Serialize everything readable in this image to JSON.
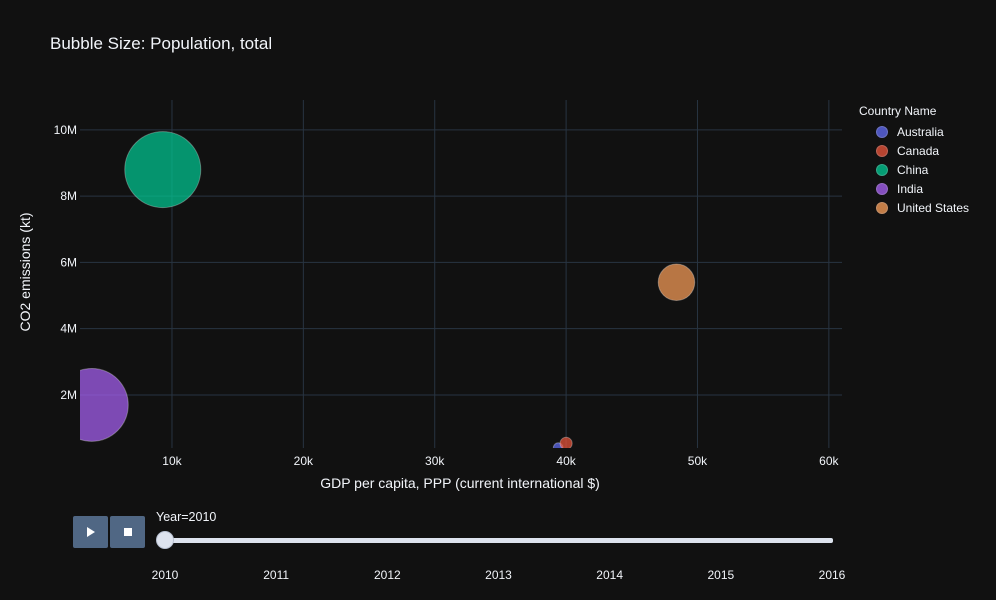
{
  "chart_data": {
    "type": "scatter",
    "title": "Bubble Size: Population, total",
    "xlabel": "GDP per capita, PPP (current international $)",
    "ylabel": "CO2 emissions (kt)",
    "xlim": [
      3000,
      61000
    ],
    "ylim": [
      400000,
      10900000
    ],
    "x_ticks": [
      10000,
      20000,
      30000,
      40000,
      50000,
      60000
    ],
    "x_tick_labels": [
      "10k",
      "20k",
      "30k",
      "40k",
      "50k",
      "60k"
    ],
    "y_ticks": [
      2000000,
      4000000,
      6000000,
      8000000,
      10000000
    ],
    "y_tick_labels": [
      "2M",
      "4M",
      "6M",
      "8M",
      "10M"
    ],
    "grid": true,
    "legend_title": "Country Name",
    "legend_position": "top-right",
    "series": [
      {
        "name": "Australia",
        "color": "#636efa",
        "x": 39400,
        "y": 410000,
        "size_population": 22000000
      },
      {
        "name": "Canada",
        "color": "#ef553b",
        "x": 40000,
        "y": 540000,
        "size_population": 34000000
      },
      {
        "name": "China",
        "color": "#00cc96",
        "x": 9300,
        "y": 8800000,
        "size_population": 1340000000
      },
      {
        "name": "India",
        "color": "#ab63fa",
        "x": 3900,
        "y": 1700000,
        "size_population": 1230000000
      },
      {
        "name": "United States",
        "color": "#ffa15a",
        "x": 48400,
        "y": 5400000,
        "size_population": 309000000
      }
    ]
  },
  "animation": {
    "current_label": "Year=2010",
    "current_year": "2010",
    "years": [
      "2010",
      "2011",
      "2012",
      "2013",
      "2014",
      "2015",
      "2016"
    ],
    "play_icon": "play-icon",
    "stop_icon": "stop-icon"
  }
}
